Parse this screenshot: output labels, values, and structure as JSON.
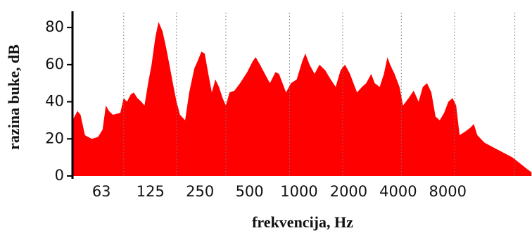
{
  "chart_data": {
    "type": "area",
    "x_label": "frekvencija, Hz",
    "y_label": "razina buke, dB",
    "color": "#ff0000",
    "xscale": "log",
    "xlim": [
      42,
      26000
    ],
    "ylim": [
      0,
      88
    ],
    "xticks": [
      63,
      125,
      250,
      500,
      1000,
      2000,
      4000,
      8000
    ],
    "yticks": [
      0,
      20,
      40,
      60,
      80
    ],
    "xgrid": [
      86,
      180,
      359,
      875,
      1840,
      4180,
      8800,
      20450
    ],
    "x": [
      42,
      45,
      47,
      50,
      55,
      60,
      64,
      67,
      70,
      74,
      82,
      86,
      90,
      95,
      99,
      104,
      110,
      115,
      121,
      127,
      134,
      140,
      148,
      155,
      163,
      171,
      180,
      189,
      203,
      215,
      231,
      242,
      255,
      267,
      281,
      295,
      310,
      326,
      343,
      359,
      378,
      405,
      438,
      484,
      524,
      545,
      579,
      620,
      665,
      719,
      755,
      793,
      833,
      893,
      967,
      1047,
      1091,
      1158,
      1241,
      1330,
      1440,
      1557,
      1668,
      1787,
      1901,
      2038,
      2139,
      2250,
      2410,
      2558,
      2742,
      2880,
      3087,
      3276,
      3441,
      3575,
      3801,
      4074,
      4280,
      4632,
      4966,
      5320,
      5645,
      5990,
      6360,
      6745,
      7150,
      7603,
      8070,
      8560,
      9000,
      9445,
      10230,
      10960,
      11520,
      12100,
      13350,
      14730,
      16250,
      17930,
      19780,
      21830,
      24090,
      25820
    ],
    "values": [
      30,
      35,
      33,
      22,
      20,
      21,
      25,
      38,
      35,
      33,
      34,
      42,
      40,
      44,
      45,
      42,
      40,
      38,
      50,
      60,
      75,
      83,
      78,
      70,
      60,
      50,
      40,
      33,
      30,
      45,
      58,
      62,
      67,
      66,
      55,
      45,
      52,
      48,
      42,
      38,
      45,
      46,
      50,
      56,
      62,
      64,
      60,
      55,
      50,
      56,
      55,
      50,
      45,
      50,
      52,
      62,
      66,
      60,
      55,
      60,
      57,
      52,
      48,
      57,
      60,
      55,
      50,
      45,
      48,
      50,
      55,
      50,
      48,
      55,
      64,
      60,
      55,
      48,
      38,
      42,
      46,
      40,
      48,
      50,
      45,
      32,
      30,
      34,
      40,
      42,
      38,
      22,
      24,
      26,
      28,
      22,
      18,
      16,
      14,
      12,
      10,
      7,
      4,
      2
    ]
  }
}
